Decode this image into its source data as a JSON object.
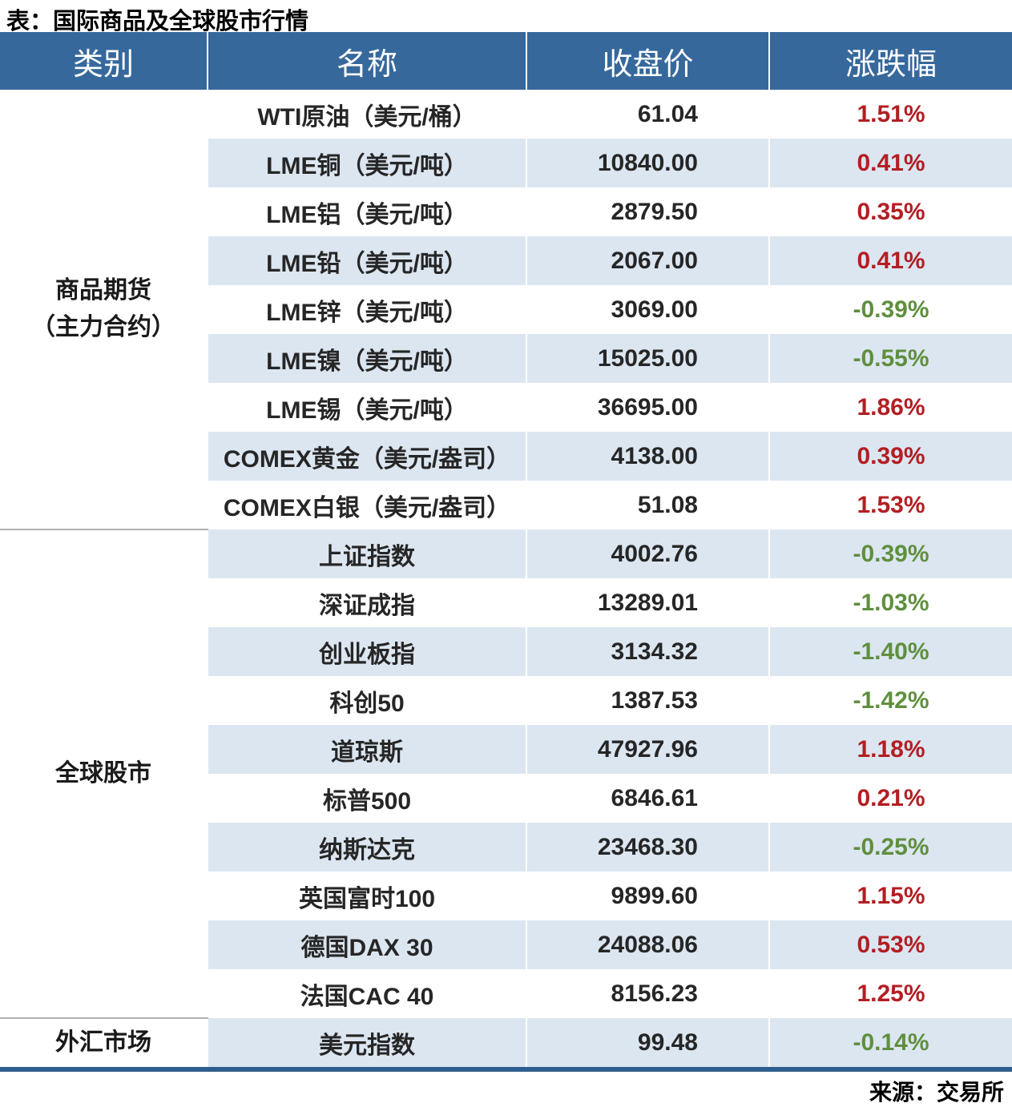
{
  "title": "表：国际商品及全球股市行情",
  "source": "来源：交易所",
  "colors": {
    "header-bg": "#36689C",
    "stripe": "#DCE6F1",
    "up": "#B31E23",
    "down": "#5F8F3E",
    "border": "#2E5E8E",
    "divider": "#B0B0B0"
  },
  "table": {
    "headers": [
      "类别",
      "名称",
      "收盘价",
      "涨跌幅"
    ],
    "sections": [
      {
        "category_lines": [
          "商品期货",
          "（主力合约）"
        ],
        "rows": [
          {
            "name": "WTI原油（美元/桶）",
            "close": "61.04",
            "change": "1.51%"
          },
          {
            "name": "LME铜（美元/吨）",
            "close": "10840.00",
            "change": "0.41%"
          },
          {
            "name": "LME铝（美元/吨）",
            "close": "2879.50",
            "change": "0.35%"
          },
          {
            "name": "LME铅（美元/吨）",
            "close": "2067.00",
            "change": "0.41%"
          },
          {
            "name": "LME锌（美元/吨）",
            "close": "3069.00",
            "change": "-0.39%"
          },
          {
            "name": "LME镍（美元/吨）",
            "close": "15025.00",
            "change": "-0.55%"
          },
          {
            "name": "LME锡（美元/吨）",
            "close": "36695.00",
            "change": "1.86%"
          },
          {
            "name": "COMEX黄金（美元/盎司）",
            "close": "4138.00",
            "change": "0.39%"
          },
          {
            "name": "COMEX白银（美元/盎司）",
            "close": "51.08",
            "change": "1.53%"
          }
        ]
      },
      {
        "category_lines": [
          "全球股市"
        ],
        "rows": [
          {
            "name": "上证指数",
            "close": "4002.76",
            "change": "-0.39%"
          },
          {
            "name": "深证成指",
            "close": "13289.01",
            "change": "-1.03%"
          },
          {
            "name": "创业板指",
            "close": "3134.32",
            "change": "-1.40%"
          },
          {
            "name": "科创50",
            "close": "1387.53",
            "change": "-1.42%"
          },
          {
            "name": "道琼斯",
            "close": "47927.96",
            "change": "1.18%"
          },
          {
            "name": "标普500",
            "close": "6846.61",
            "change": "0.21%"
          },
          {
            "name": "纳斯达克",
            "close": "23468.30",
            "change": "-0.25%"
          },
          {
            "name": "英国富时100",
            "close": "9899.60",
            "change": "1.15%"
          },
          {
            "name": "德国DAX 30",
            "close": "24088.06",
            "change": "0.53%"
          },
          {
            "name": "法国CAC 40",
            "close": "8156.23",
            "change": "1.25%"
          }
        ]
      },
      {
        "category_lines": [
          "外汇市场"
        ],
        "rows": [
          {
            "name": "美元指数",
            "close": "99.48",
            "change": "-0.14%"
          }
        ]
      }
    ]
  }
}
